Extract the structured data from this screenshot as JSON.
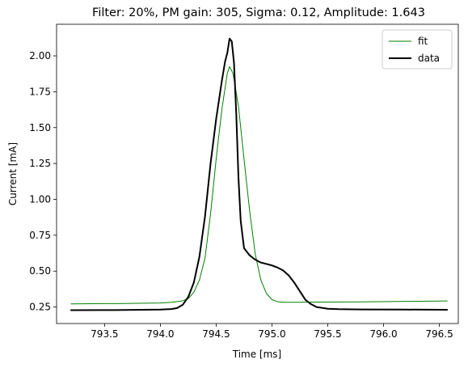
{
  "chart_data": {
    "type": "line",
    "title": "Filter: 20%, PM gain: 305, Sigma: 0.12, Amplitude: 1.643",
    "xlabel": "Time [ms]",
    "ylabel": "Current [mA]",
    "xlim": [
      793.07,
      796.67
    ],
    "ylim": [
      0.135,
      2.22
    ],
    "xticks": [
      793.5,
      794.0,
      794.5,
      795.0,
      795.5,
      796.0,
      796.5
    ],
    "xtick_labels": [
      "793.5",
      "794.0",
      "794.5",
      "795.0",
      "795.5",
      "796.0",
      "796.5"
    ],
    "yticks": [
      0.25,
      0.5,
      0.75,
      1.0,
      1.25,
      1.5,
      1.75,
      2.0
    ],
    "ytick_labels": [
      "0.25",
      "0.50",
      "0.75",
      "1.00",
      "1.25",
      "1.50",
      "1.75",
      "2.00"
    ],
    "legend_position": "top-right",
    "grid": false,
    "series": [
      {
        "name": "fit",
        "color": "#008000",
        "x": [
          793.2,
          793.6,
          794.0,
          794.1,
          794.2,
          794.25,
          794.3,
          794.35,
          794.4,
          794.45,
          794.5,
          794.55,
          794.6,
          794.62,
          794.65,
          794.7,
          794.75,
          794.8,
          794.85,
          794.9,
          794.95,
          795.0,
          795.05,
          795.1,
          795.2,
          795.4,
          795.8,
          796.2,
          796.57
        ],
        "y": [
          0.272,
          0.274,
          0.278,
          0.283,
          0.293,
          0.309,
          0.353,
          0.438,
          0.59,
          0.9,
          1.28,
          1.62,
          1.88,
          1.925,
          1.88,
          1.65,
          1.28,
          0.92,
          0.62,
          0.44,
          0.345,
          0.302,
          0.287,
          0.283,
          0.283,
          0.284,
          0.286,
          0.289,
          0.292
        ]
      },
      {
        "name": "data",
        "color": "#000000",
        "x": [
          793.2,
          793.6,
          794.0,
          794.1,
          794.15,
          794.2,
          794.25,
          794.3,
          794.35,
          794.4,
          794.45,
          794.5,
          794.55,
          794.58,
          794.6,
          794.62,
          794.64,
          794.66,
          794.68,
          794.7,
          794.72,
          794.75,
          794.8,
          794.85,
          794.9,
          795.0,
          795.05,
          795.1,
          795.15,
          795.2,
          795.25,
          795.3,
          795.35,
          795.4,
          795.5,
          795.6,
          795.8,
          796.2,
          796.57
        ],
        "y": [
          0.228,
          0.229,
          0.232,
          0.236,
          0.243,
          0.265,
          0.32,
          0.42,
          0.6,
          0.88,
          1.25,
          1.56,
          1.82,
          1.96,
          2.02,
          2.12,
          2.1,
          1.95,
          1.6,
          1.15,
          0.85,
          0.66,
          0.61,
          0.58,
          0.56,
          0.54,
          0.525,
          0.505,
          0.47,
          0.42,
          0.36,
          0.3,
          0.27,
          0.25,
          0.238,
          0.235,
          0.233,
          0.232,
          0.231
        ]
      }
    ]
  }
}
